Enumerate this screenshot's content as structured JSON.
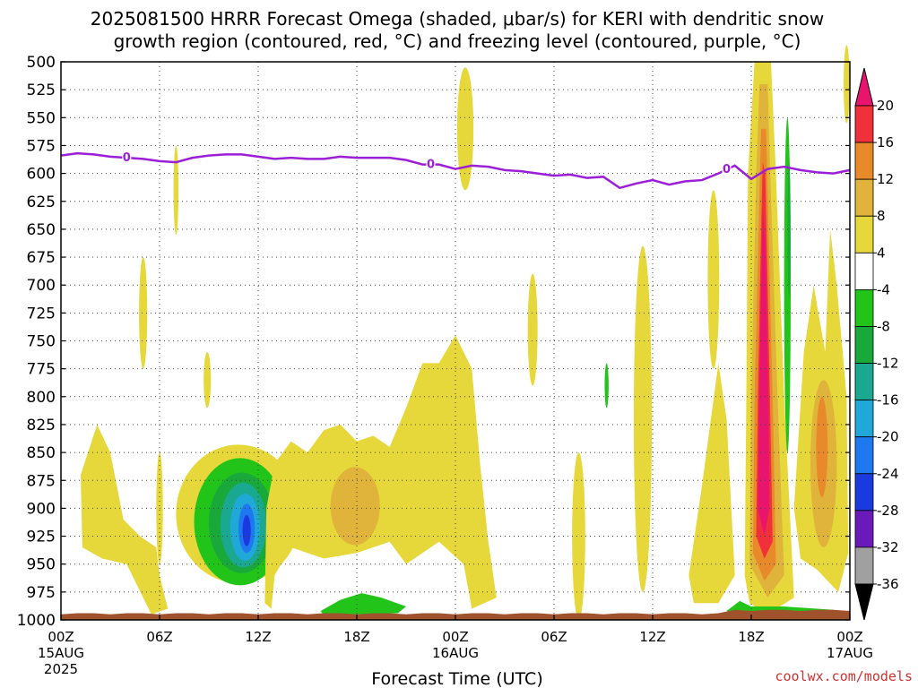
{
  "title_line1": "2025081500 HRRR Forecast Omega (shaded, μbar/s) for KERI with dendritic snow",
  "title_line2": "growth region (contoured, red, °C) and freezing level (contoured, purple, °C)",
  "credit": "coolwx.com/models",
  "colors": {
    "yellow": "#e6d83a",
    "orange_light": "#e0b43a",
    "orange": "#e88a2a",
    "red": "#f0303a",
    "magenta": "#e8156e",
    "green": "#22c41a",
    "green_dark": "#19a83a",
    "teal": "#1aa890",
    "cyan": "#20a8d8",
    "blue": "#1e78f0",
    "blue_dark": "#1a3ae0",
    "purple": "#6a1ab8",
    "freezing": "#9b1fd6",
    "ground": "#a0522d"
  },
  "chart_data": {
    "type": "heatmap",
    "title": "2025081500 HRRR Forecast Omega (shaded, μbar/s) for KERI with dendritic snow growth region (contoured, red, °C) and freezing level (contoured, purple, °C)",
    "xlabel": "Forecast Time (UTC)",
    "ylabel": "",
    "y_ticks": [
      500,
      525,
      550,
      575,
      600,
      625,
      650,
      675,
      700,
      725,
      750,
      775,
      800,
      825,
      850,
      875,
      900,
      925,
      950,
      975,
      1000
    ],
    "y_range": [
      500,
      1000
    ],
    "x_range": [
      0,
      48
    ],
    "x_ticks": [
      {
        "hour": 0,
        "label": "00Z",
        "sub": "15AUG",
        "sub2": "2025"
      },
      {
        "hour": 6,
        "label": "06Z",
        "sub": "",
        "sub2": ""
      },
      {
        "hour": 12,
        "label": "12Z",
        "sub": "",
        "sub2": ""
      },
      {
        "hour": 18,
        "label": "18Z",
        "sub": "",
        "sub2": ""
      },
      {
        "hour": 24,
        "label": "00Z",
        "sub": "16AUG",
        "sub2": ""
      },
      {
        "hour": 30,
        "label": "06Z",
        "sub": "",
        "sub2": ""
      },
      {
        "hour": 36,
        "label": "12Z",
        "sub": "",
        "sub2": ""
      },
      {
        "hour": 42,
        "label": "18Z",
        "sub": "",
        "sub2": ""
      },
      {
        "hour": 48,
        "label": "00Z",
        "sub": "17AUG",
        "sub2": ""
      }
    ],
    "grid": true,
    "colorbar": {
      "labels": [
        "20",
        "16",
        "12",
        "8",
        "4",
        "-4",
        "-8",
        "-12",
        "-16",
        "-20",
        "-24",
        "-28",
        "-32",
        "-36"
      ],
      "colors": [
        "#f0303a",
        "#e88a2a",
        "#e0b43a",
        "#e6d83a",
        "#ffffff",
        "#22c41a",
        "#19a83a",
        "#1aa890",
        "#20a8d8",
        "#1e78f0",
        "#1a3ae0",
        "#6a1ab8",
        "#a0a0a0"
      ],
      "top_color": "#e8156e",
      "bottom_color": "#000000"
    },
    "freezing_level": {
      "label": "0",
      "points": [
        [
          0,
          584
        ],
        [
          1,
          582
        ],
        [
          2,
          583
        ],
        [
          3,
          585
        ],
        [
          4,
          586
        ],
        [
          5,
          587
        ],
        [
          6,
          589
        ],
        [
          7,
          590
        ],
        [
          8,
          586
        ],
        [
          9,
          584
        ],
        [
          10,
          583
        ],
        [
          11,
          583
        ],
        [
          12,
          585
        ],
        [
          13,
          587
        ],
        [
          14,
          586
        ],
        [
          15,
          587
        ],
        [
          16,
          587
        ],
        [
          17,
          585
        ],
        [
          18,
          586
        ],
        [
          19,
          586
        ],
        [
          20,
          586
        ],
        [
          21,
          588
        ],
        [
          22,
          592
        ],
        [
          23,
          592
        ],
        [
          24,
          596
        ],
        [
          25,
          593
        ],
        [
          26,
          594
        ],
        [
          27,
          597
        ],
        [
          28,
          598
        ],
        [
          29,
          600
        ],
        [
          30,
          602
        ],
        [
          31,
          601
        ],
        [
          32,
          604
        ],
        [
          33,
          603
        ],
        [
          34,
          613
        ],
        [
          35,
          609
        ],
        [
          36,
          606
        ],
        [
          37,
          610
        ],
        [
          38,
          607
        ],
        [
          39,
          606
        ],
        [
          40,
          600
        ],
        [
          41,
          593
        ],
        [
          42,
          605
        ],
        [
          43,
          596
        ],
        [
          44,
          594
        ],
        [
          45,
          597
        ],
        [
          46,
          599
        ],
        [
          47,
          600
        ],
        [
          48,
          597
        ]
      ],
      "label_hours": [
        4,
        22.5,
        40.5
      ]
    }
  }
}
